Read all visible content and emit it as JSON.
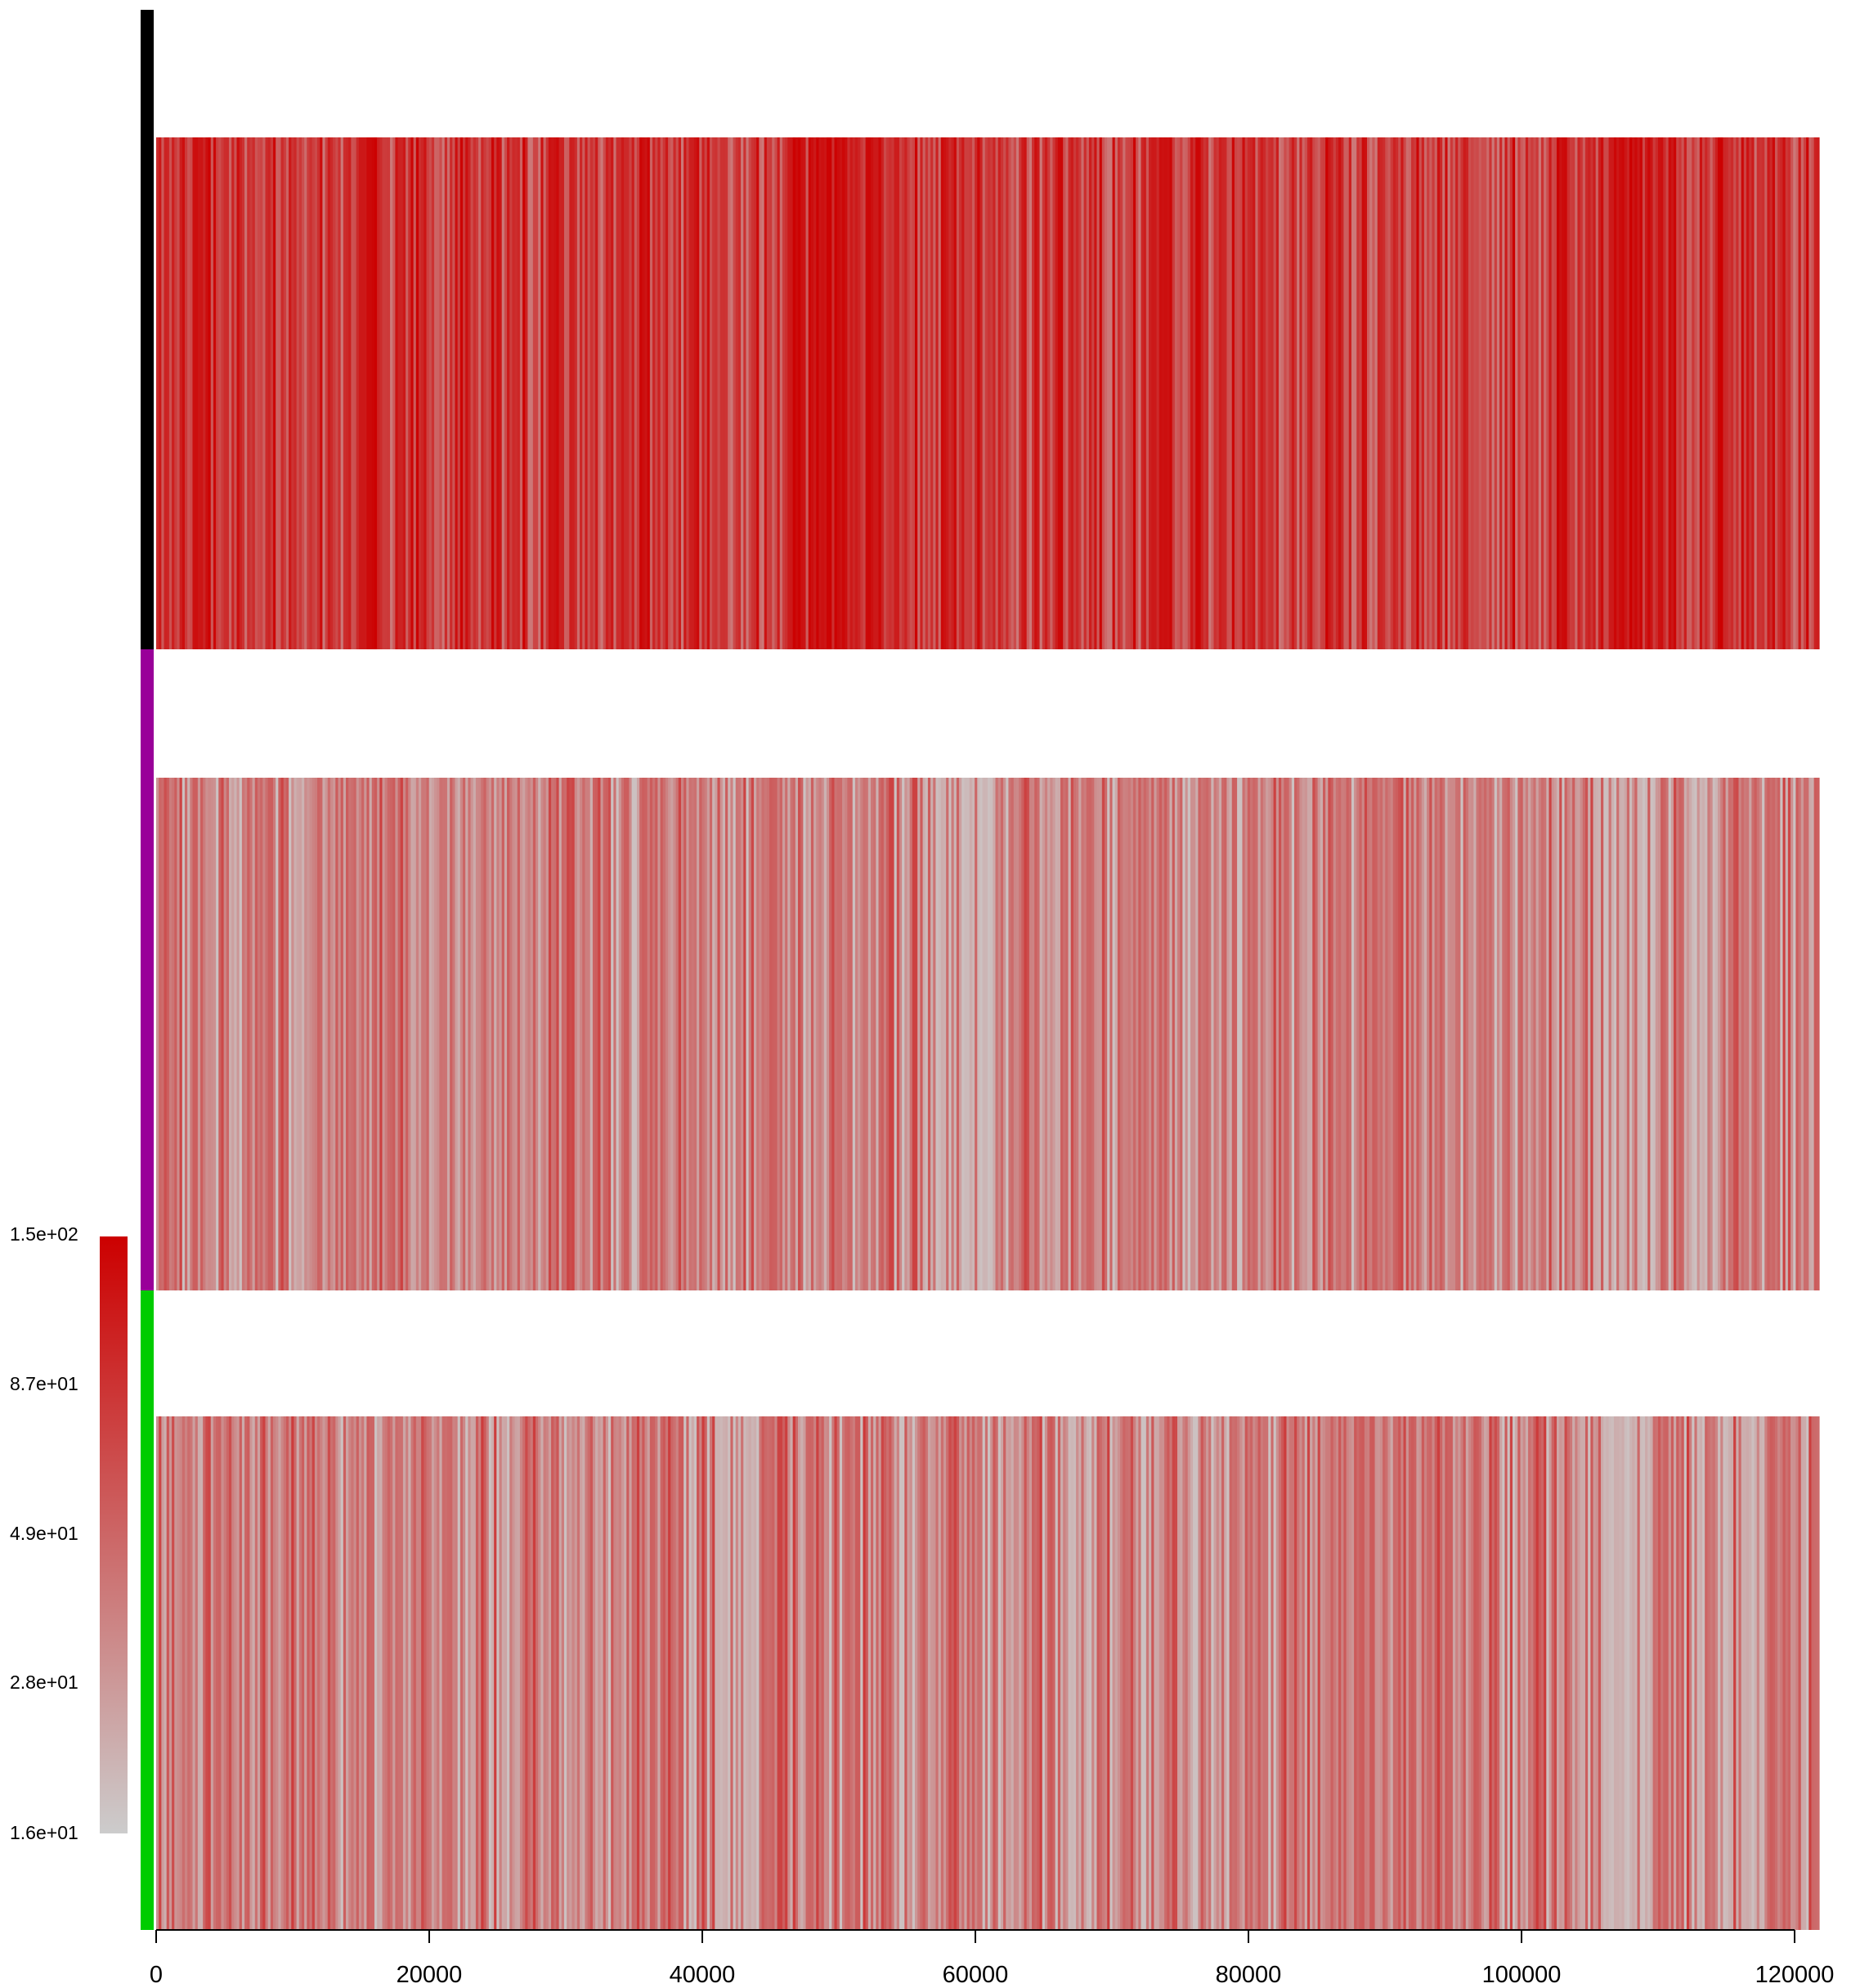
{
  "chart_data": {
    "type": "heatmap",
    "title": "",
    "xlabel": "",
    "ylabel": "",
    "xlim": [
      0,
      122000
    ],
    "x_ticks": [
      0,
      20000,
      40000,
      60000,
      80000,
      100000,
      120000
    ],
    "x_tick_labels": [
      "0",
      "20000",
      "40000",
      "60000",
      "80000",
      "100000",
      "120000"
    ],
    "color_scale": {
      "min_color": "#cccccc",
      "max_color": "#cc0000",
      "scale": "log",
      "labels": [
        "1.5e+02",
        "8.7e+01",
        "4.9e+01",
        "2.8e+01",
        "1.6e+01"
      ],
      "values": [
        150,
        87,
        49,
        28,
        16
      ]
    },
    "grid": false,
    "legend": "left",
    "rows": [
      {
        "group_color": "#000000",
        "mean_value": 80,
        "range": [
          40,
          150
        ],
        "dense_regions": [
          [
            2000,
            4000
          ],
          [
            14500,
            16000
          ],
          [
            24500,
            25500
          ],
          [
            28000,
            29500
          ],
          [
            35500,
            36500
          ],
          [
            46500,
            51000
          ],
          [
            52000,
            53000
          ],
          [
            73000,
            74500
          ],
          [
            102500,
            103500
          ],
          [
            106000,
            111500
          ]
        ]
      },
      {
        "group_color": "#990099",
        "mean_value": 38,
        "range": [
          18,
          75
        ],
        "faint_regions": [
          [
            56000,
            62000
          ],
          [
            105500,
            110000
          ],
          [
            112000,
            114500
          ]
        ]
      },
      {
        "group_color": "#00cc00",
        "mean_value": 40,
        "range": [
          18,
          80
        ],
        "faint_regions": [
          [
            41000,
            44000
          ],
          [
            66000,
            69000
          ],
          [
            106000,
            110000
          ],
          [
            113000,
            118000
          ]
        ]
      }
    ]
  }
}
